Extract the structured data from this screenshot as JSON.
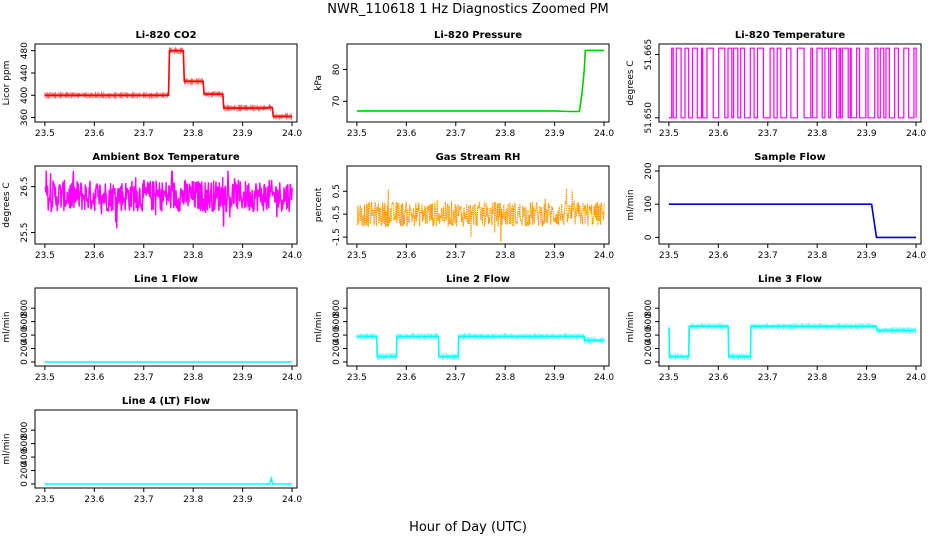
{
  "figure": {
    "title": "NWR_110618  1 Hz Diagnostics Zoomed PM",
    "xlabel": "Hour of Day (UTC)"
  },
  "chart_data": [
    {
      "id": "co2",
      "type": "line",
      "title": "Li-820 CO2",
      "ylabel": "Licor ppm",
      "color": "#ff0000",
      "style": "step",
      "xlim": [
        23.48,
        24.01
      ],
      "ylim": [
        352,
        492
      ],
      "xticks": [
        "23.5",
        "23.6",
        "23.7",
        "23.8",
        "23.9",
        "24.0"
      ],
      "yticks": [
        "360",
        "400",
        "440",
        "480"
      ],
      "series": [
        {
          "x": [
            23.5,
            23.75,
            23.752,
            23.78,
            23.782,
            23.82,
            23.822,
            23.86,
            23.862,
            23.95,
            23.952,
            23.96,
            23.962,
            24.0
          ],
          "y": [
            400,
            400,
            480,
            480,
            425,
            425,
            402,
            402,
            377,
            377,
            378,
            378,
            362,
            362
          ]
        }
      ]
    },
    {
      "id": "pressure",
      "type": "line",
      "title": "Li-820 Pressure",
      "ylabel": "kPa",
      "color": "#00cc00",
      "style": "step",
      "xlim": [
        23.48,
        24.01
      ],
      "ylim": [
        63.5,
        88
      ],
      "xticks": [
        "23.5",
        "23.6",
        "23.7",
        "23.8",
        "23.9",
        "24.0"
      ],
      "yticks": [
        "70",
        "80"
      ],
      "series": [
        {
          "x": [
            23.5,
            23.9,
            23.93,
            23.95,
            23.955,
            23.96,
            23.962,
            24.0
          ],
          "y": [
            67,
            67,
            66.8,
            66.8,
            72,
            80,
            86,
            86
          ]
        }
      ]
    },
    {
      "id": "licor_temp",
      "type": "line",
      "title": "Li-820 Temperature",
      "ylabel": "degrees C",
      "color": "#ff00ff",
      "style": "square-wave",
      "xlim": [
        23.48,
        24.01
      ],
      "ylim": [
        51.649,
        51.6675
      ],
      "xticks": [
        "23.5",
        "23.6",
        "23.7",
        "23.8",
        "23.9",
        "24.0"
      ],
      "yticks": [
        "51.650",
        "51.665"
      ],
      "series": [
        {
          "low": 51.65,
          "high": 51.6665,
          "x": [
            23.5,
            24.0
          ]
        }
      ]
    },
    {
      "id": "box_temp",
      "type": "line",
      "title": "Ambient Box Temperature",
      "ylabel": "degrees C",
      "color": "#ff00ff",
      "style": "noise",
      "xlim": [
        23.48,
        24.01
      ],
      "ylim": [
        25.25,
        26.95
      ],
      "xticks": [
        "23.5",
        "23.6",
        "23.7",
        "23.8",
        "23.9",
        "24.0"
      ],
      "yticks": [
        "25.5",
        "26.5"
      ],
      "series": [
        {
          "x": [
            23.5,
            24.0
          ],
          "mean": 26.3,
          "spread": 0.35,
          "min": 25.4,
          "max": 26.85
        }
      ]
    },
    {
      "id": "rh",
      "type": "line",
      "title": "Gas Stream RH",
      "ylabel": "percent",
      "color": "#ff9900",
      "style": "noise-dots",
      "xlim": [
        23.48,
        24.01
      ],
      "ylim": [
        -1.8,
        1.6
      ],
      "xticks": [
        "23.5",
        "23.6",
        "23.7",
        "23.8",
        "23.9",
        "24.0"
      ],
      "yticks": [
        "-1.5",
        "-0.5",
        "0.5"
      ],
      "series": [
        {
          "x": [
            23.5,
            24.0
          ],
          "mean": -0.5,
          "spread": 0.55,
          "min": -1.7,
          "max": 1.2
        }
      ]
    },
    {
      "id": "sample_flow",
      "type": "line",
      "title": "Sample Flow",
      "ylabel": "ml/min",
      "color": "#0000cc",
      "style": "step",
      "xlim": [
        23.48,
        24.01
      ],
      "ylim": [
        -20,
        215
      ],
      "xticks": [
        "23.5",
        "23.6",
        "23.7",
        "23.8",
        "23.9",
        "24.0"
      ],
      "yticks": [
        "0",
        "100",
        "200"
      ],
      "series": [
        {
          "x": [
            23.5,
            23.91,
            23.915,
            23.92,
            24.0
          ],
          "y": [
            100,
            100,
            50,
            0,
            0
          ]
        }
      ]
    },
    {
      "id": "line1",
      "type": "line",
      "title": "Line 1 Flow",
      "ylabel": "ml/min",
      "color": "#00ffff",
      "style": "step",
      "xlim": [
        23.48,
        24.01
      ],
      "ylim": [
        -60,
        1100
      ],
      "xticks": [
        "23.5",
        "23.6",
        "23.7",
        "23.8",
        "23.9",
        "24.0"
      ],
      "yticks": [
        "0",
        "200",
        "400",
        "600",
        "800"
      ],
      "series": [
        {
          "x": [
            23.5,
            24.0
          ],
          "y": [
            0,
            0
          ]
        }
      ]
    },
    {
      "id": "line2",
      "type": "line",
      "title": "Line 2 Flow",
      "ylabel": "ml/min",
      "color": "#00ffff",
      "style": "step",
      "xlim": [
        23.48,
        24.01
      ],
      "ylim": [
        -60,
        1100
      ],
      "xticks": [
        "23.5",
        "23.6",
        "23.7",
        "23.8",
        "23.9",
        "24.0"
      ],
      "yticks": [
        "0",
        "200",
        "400",
        "600",
        "800"
      ],
      "series": [
        {
          "x": [
            23.5,
            23.54,
            23.541,
            23.58,
            23.581,
            23.665,
            23.666,
            23.705,
            23.706,
            23.96,
            23.961,
            24.0
          ],
          "y": [
            380,
            380,
            80,
            80,
            380,
            380,
            80,
            80,
            380,
            380,
            320,
            320
          ]
        }
      ]
    },
    {
      "id": "line3",
      "type": "line",
      "title": "Line 3 Flow",
      "ylabel": "ml/min",
      "color": "#00ffff",
      "style": "step",
      "xlim": [
        23.48,
        24.01
      ],
      "ylim": [
        -60,
        1100
      ],
      "xticks": [
        "23.5",
        "23.6",
        "23.7",
        "23.8",
        "23.9",
        "24.0"
      ],
      "yticks": [
        "0",
        "200",
        "400",
        "600",
        "800"
      ],
      "series": [
        {
          "x": [
            23.5,
            23.5005,
            23.501,
            23.54,
            23.541,
            23.62,
            23.621,
            23.665,
            23.666,
            23.92,
            23.921,
            24.0
          ],
          "y": [
            500,
            500,
            80,
            80,
            530,
            530,
            80,
            80,
            530,
            530,
            470,
            470
          ]
        }
      ]
    },
    {
      "id": "line4",
      "type": "line",
      "title": "Line 4 (LT) Flow",
      "ylabel": "ml/min",
      "color": "#00ffff",
      "style": "step",
      "xlim": [
        23.48,
        24.01
      ],
      "ylim": [
        -60,
        1100
      ],
      "xticks": [
        "23.5",
        "23.6",
        "23.7",
        "23.8",
        "23.9",
        "24.0"
      ],
      "yticks": [
        "0",
        "200",
        "400",
        "600",
        "800"
      ],
      "series": [
        {
          "x": [
            23.5,
            23.955,
            23.958,
            23.961,
            24.0
          ],
          "y": [
            0,
            0,
            80,
            0,
            0
          ]
        }
      ]
    }
  ]
}
